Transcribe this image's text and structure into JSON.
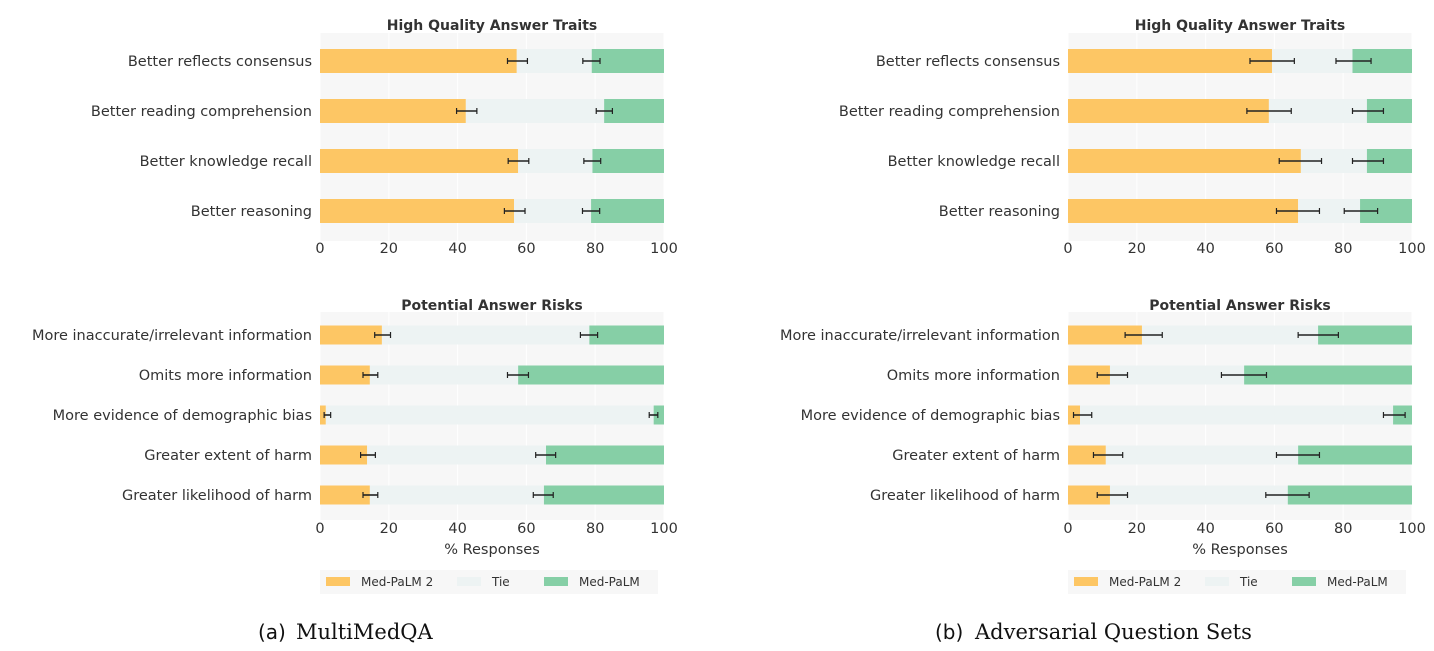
{
  "colors": {
    "medpalm2": "#fdc664",
    "tie": "#edf3f3",
    "medpalm": "#86cfa6",
    "plot_bg": "#f7f7f7",
    "grid": "#ffffff",
    "errorbar": "#222222"
  },
  "legend": {
    "entries": [
      {
        "key": "medpalm2",
        "label": "Med-PaLM 2"
      },
      {
        "key": "tie",
        "label": "Tie"
      },
      {
        "key": "medpalm",
        "label": "Med-PaLM"
      }
    ]
  },
  "panels": [
    {
      "id": "a",
      "caption_tag": "(a)",
      "caption": "MultiMedQA"
    },
    {
      "id": "b",
      "caption_tag": "(b)",
      "caption": "Adversarial Question Sets"
    }
  ],
  "chart_data": [
    {
      "type": "bar",
      "orientation": "horizontal-stacked",
      "panel": "a",
      "title": "High Quality Answer Traits",
      "xlabel": "",
      "xlim": [
        0,
        100
      ],
      "xticks": [
        0,
        20,
        40,
        60,
        80,
        100
      ],
      "grid": true,
      "categories": [
        "Better reflects consensus",
        "Better reading comprehension",
        "Better knowledge recall",
        "Better reasoning"
      ],
      "series": [
        {
          "name": "Med-PaLM 2",
          "values": [
            57.2,
            42.4,
            57.6,
            56.4
          ],
          "err_low": [
            54.5,
            39.7,
            54.7,
            53.6
          ],
          "err_high": [
            60.3,
            45.6,
            60.7,
            59.6
          ]
        },
        {
          "name": "Tie",
          "values": [
            21.8,
            40.2,
            21.6,
            22.4
          ]
        },
        {
          "name": "Med-PaLM",
          "values": [
            21.0,
            17.4,
            20.8,
            21.2
          ],
          "boundary_err_low": [
            76.4,
            80.3,
            76.7,
            76.3
          ],
          "boundary_err_high": [
            81.4,
            85.0,
            81.6,
            81.3
          ]
        }
      ]
    },
    {
      "type": "bar",
      "orientation": "horizontal-stacked",
      "panel": "a",
      "title": "Potential Answer Risks",
      "xlabel": "% Responses",
      "xlim": [
        0,
        100
      ],
      "xticks": [
        0,
        20,
        40,
        60,
        80,
        100
      ],
      "grid": true,
      "categories": [
        "More inaccurate/irrelevant information",
        "Omits more information",
        "More evidence of demographic bias",
        "Greater extent of harm",
        "Greater likelihood of harm"
      ],
      "series": [
        {
          "name": "Med-PaLM 2",
          "values": [
            18.0,
            14.5,
            1.7,
            13.7,
            14.5
          ],
          "err_low": [
            15.9,
            12.5,
            1.2,
            11.8,
            12.5
          ],
          "err_high": [
            20.5,
            16.8,
            3.1,
            16.1,
            16.8
          ]
        },
        {
          "name": "Tie",
          "values": [
            60.3,
            43.1,
            95.3,
            52.0,
            50.6
          ]
        },
        {
          "name": "Med-PaLM",
          "values": [
            21.7,
            42.4,
            3.0,
            34.3,
            34.9
          ],
          "boundary_err_low": [
            75.7,
            54.5,
            95.7,
            62.7,
            62.0
          ],
          "boundary_err_high": [
            80.7,
            60.6,
            98.2,
            68.5,
            67.8
          ]
        }
      ]
    },
    {
      "type": "bar",
      "orientation": "horizontal-stacked",
      "panel": "b",
      "title": "High Quality Answer Traits",
      "xlabel": "",
      "xlim": [
        0,
        100
      ],
      "xticks": [
        0,
        20,
        40,
        60,
        80,
        100
      ],
      "grid": true,
      "categories": [
        "Better reflects consensus",
        "Better reading comprehension",
        "Better knowledge recall",
        "Better reasoning"
      ],
      "series": [
        {
          "name": "Med-PaLM 2",
          "values": [
            59.3,
            58.4,
            67.7,
            66.9
          ],
          "err_low": [
            52.9,
            52.0,
            61.4,
            60.6
          ],
          "err_high": [
            65.8,
            64.9,
            73.7,
            73.1
          ]
        },
        {
          "name": "Tie",
          "values": [
            23.4,
            28.5,
            19.2,
            18.0
          ]
        },
        {
          "name": "Med-PaLM",
          "values": [
            17.3,
            13.1,
            13.1,
            15.1
          ],
          "boundary_err_low": [
            77.9,
            82.7,
            82.7,
            80.3
          ],
          "boundary_err_high": [
            88.1,
            91.7,
            91.7,
            90.0
          ]
        }
      ]
    },
    {
      "type": "bar",
      "orientation": "horizontal-stacked",
      "panel": "b",
      "title": "Potential Answer Risks",
      "xlabel": "% Responses",
      "xlim": [
        0,
        100
      ],
      "xticks": [
        0,
        20,
        40,
        60,
        80,
        100
      ],
      "grid": true,
      "categories": [
        "More inaccurate/irrelevant information",
        "Omits more information",
        "More evidence of demographic bias",
        "Greater extent of harm",
        "Greater likelihood of harm"
      ],
      "series": [
        {
          "name": "Med-PaLM 2",
          "values": [
            21.5,
            12.2,
            3.5,
            11.0,
            12.2
          ],
          "err_low": [
            16.6,
            8.5,
            1.6,
            7.4,
            8.5
          ],
          "err_high": [
            27.4,
            17.3,
            6.9,
            15.9,
            17.3
          ]
        },
        {
          "name": "Tie",
          "values": [
            51.2,
            39.0,
            91.0,
            55.9,
            51.7
          ]
        },
        {
          "name": "Med-PaLM",
          "values": [
            27.3,
            48.8,
            5.5,
            33.1,
            36.1
          ],
          "boundary_err_low": [
            66.9,
            44.6,
            91.7,
            60.6,
            57.5
          ],
          "boundary_err_high": [
            78.6,
            57.7,
            98.0,
            73.1,
            70.1
          ]
        }
      ]
    }
  ]
}
